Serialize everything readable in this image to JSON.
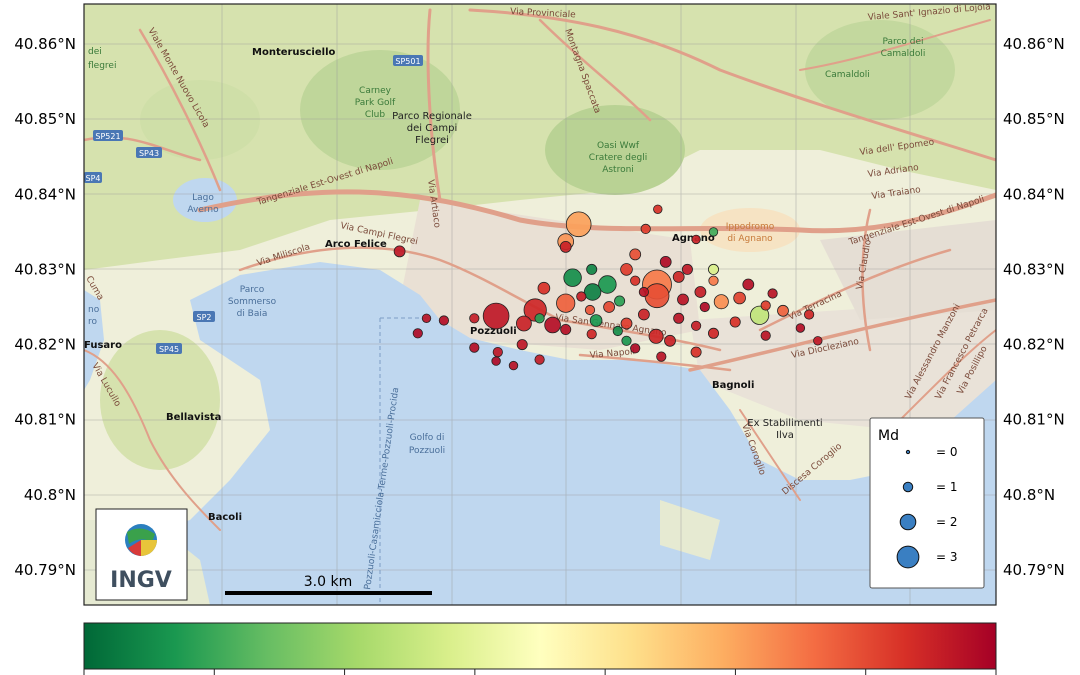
{
  "map": {
    "lat_labels": [
      "40.86°N",
      "40.85°N",
      "40.84°N",
      "40.83°N",
      "40.82°N",
      "40.81°N",
      "40.8°N",
      "40.79°N"
    ],
    "places": {
      "monterusciello": "Monterusciello",
      "arco_felice": "Arco Felice",
      "agnano": "Agnano",
      "bagnoli": "Bagnoli",
      "bellavista": "Bellavista",
      "bacoli": "Bacoli",
      "fusaro": "Fusaro",
      "pozzuoli": "Pozzuoli",
      "camaldoli": "Camaldoli"
    },
    "water_labels": {
      "lago_averno_1": "Lago",
      "lago_averno_2": "Averno",
      "golfo_1": "Golfo di",
      "golfo_2": "Pozzuoli",
      "parco_sommerso_1": "Parco",
      "parco_sommerso_2": "Sommerso",
      "parco_sommerso_3": "di Baia",
      "ferry_route": "Pozzuoli-Casamicciola-Terme-Pozzuoli-Procida"
    },
    "park_labels": {
      "carney_1": "Carney",
      "carney_2": "Park Golf",
      "carney_3": "Club",
      "parco_campi_1": "Parco Regionale",
      "parco_campi_2": "dei Campi",
      "parco_campi_3": "Flegrei",
      "oasi_1": "Oasi Wwf",
      "oasi_2": "Cratere degli",
      "oasi_3": "Astroni",
      "camaldoli_1": "Parco dei",
      "camaldoli_2": "Camaldoli",
      "ippodromo_1": "Ippodromo",
      "ippodromo_2": "di Agnano",
      "ex_ilva_1": "Ex Stabilimenti",
      "ex_ilva_2": "Ilva"
    },
    "road_labels": {
      "via_provinciale": "Via Provinciale",
      "montagna_spaccata": "Montagna Spaccata",
      "tangenziale_w": "Tangenziale Est-Ovest di Napoli",
      "tangenziale_e": "Tangenziale Est-Ovest di Napoli",
      "via_campi_flegrei": "Via Campi Flegrei",
      "via_miliscola": "Via Miliscola",
      "via_san_gennaro": "Via San Gennaro Agnano",
      "via_napoli": "Via Napoli",
      "via_terracina": "Via Terracina",
      "via_diocleziano": "Via Diocleziano",
      "via_claudio": "Via Claudio",
      "via_epomeo": "Via dell' Epomeo",
      "via_adriano": "Via Adriano",
      "via_traiano": "Via Traiano",
      "viale_ignazio": "Viale Sant' Ignazio di Lojola",
      "via_coroglio": "Via Coroglio",
      "discesa_coroglio": "Discesa Coroglio",
      "via_alessandro_manzoni": "Via Alessandro Manzoni",
      "via_francesco_petrarca": "Via Francesco Petrarca",
      "via_posillipo": "Via Posillipo",
      "via_lucullo": "Via Lucullo",
      "viale_monte_nuovo": "Viale Monte Nuovo Licola",
      "via_artiaco": "Via Artiaco"
    },
    "road_shields": {
      "sp501": "SP501",
      "sp521": "SP521",
      "sp43": "SP43",
      "sp4": "SP4",
      "sp2": "SP2",
      "sp45": "SP45"
    },
    "edge_fragments": {
      "dei": "dei",
      "flegrei": "flegrei",
      "ro": "ro",
      "no": "no",
      "cuma": "Cuma"
    }
  },
  "legend": {
    "title": "Md",
    "entries": [
      {
        "magnitude": 0,
        "label": "= 0"
      },
      {
        "magnitude": 1,
        "label": "= 1"
      },
      {
        "magnitude": 2,
        "label": "= 2"
      },
      {
        "magnitude": 3,
        "label": "= 3"
      }
    ],
    "marker_color": "#3a7fc2"
  },
  "scale_bar": {
    "label": "3.0 km"
  },
  "logo": {
    "text": "INGV"
  },
  "colorbar": {
    "colors": [
      "#006837",
      "#1a9850",
      "#66bd63",
      "#a6d96a",
      "#d9ef8b",
      "#ffffbf",
      "#fee08b",
      "#fdae61",
      "#f46d43",
      "#d73027",
      "#a50026"
    ],
    "ticks": 8
  },
  "events": [
    {
      "lat": 40.8238,
      "lon": 14.123,
      "md": 2.6,
      "t": 0.95
    },
    {
      "lat": 40.8246,
      "lon": 14.1275,
      "md": 2.2,
      "t": 0.92
    },
    {
      "lat": 40.8226,
      "lon": 14.1295,
      "md": 1.4,
      "t": 0.97
    },
    {
      "lat": 40.828,
      "lon": 14.1415,
      "md": 3.0,
      "t": 0.78
    },
    {
      "lat": 40.8265,
      "lon": 14.1415,
      "md": 2.4,
      "t": 0.85
    },
    {
      "lat": 40.836,
      "lon": 14.1325,
      "md": 2.5,
      "t": 0.72
    },
    {
      "lat": 40.8337,
      "lon": 14.131,
      "md": 1.4,
      "t": 0.74
    },
    {
      "lat": 40.8289,
      "lon": 14.1318,
      "md": 1.6,
      "t": 0.08
    },
    {
      "lat": 40.828,
      "lon": 14.1358,
      "md": 1.6,
      "t": 0.1
    },
    {
      "lat": 40.827,
      "lon": 14.1341,
      "md": 1.5,
      "t": 0.05
    },
    {
      "lat": 40.8255,
      "lon": 14.131,
      "md": 1.7,
      "t": 0.82
    },
    {
      "lat": 40.8239,
      "lon": 14.1533,
      "md": 1.7,
      "t": 0.35
    },
    {
      "lat": 40.8257,
      "lon": 14.1489,
      "md": 1.2,
      "t": 0.75
    },
    {
      "lat": 40.8211,
      "lon": 14.1414,
      "md": 1.2,
      "t": 0.92
    },
    {
      "lat": 40.8228,
      "lon": 14.1262,
      "md": 1.3,
      "t": 0.93
    },
    {
      "lat": 40.8324,
      "lon": 14.1119,
      "md": 0.8,
      "t": 0.95
    },
    {
      "lat": 40.838,
      "lon": 14.1416,
      "md": 0.5,
      "t": 0.9
    },
    {
      "lat": 40.8354,
      "lon": 14.1402,
      "md": 0.6,
      "t": 0.88
    },
    {
      "lat": 40.835,
      "lon": 14.148,
      "md": 0.5,
      "t": 0.15
    },
    {
      "lat": 40.833,
      "lon": 14.131,
      "md": 0.8,
      "t": 0.93
    },
    {
      "lat": 40.832,
      "lon": 14.139,
      "md": 0.8,
      "t": 0.85
    },
    {
      "lat": 40.831,
      "lon": 14.1425,
      "md": 0.8,
      "t": 0.98
    },
    {
      "lat": 40.83,
      "lon": 14.138,
      "md": 0.9,
      "t": 0.88
    },
    {
      "lat": 40.83,
      "lon": 14.145,
      "md": 0.7,
      "t": 0.95
    },
    {
      "lat": 40.83,
      "lon": 14.148,
      "md": 0.7,
      "t": 0.4
    },
    {
      "lat": 40.829,
      "lon": 14.144,
      "md": 0.8,
      "t": 0.92
    },
    {
      "lat": 40.8285,
      "lon": 14.148,
      "md": 0.6,
      "t": 0.78
    },
    {
      "lat": 40.828,
      "lon": 14.152,
      "md": 0.8,
      "t": 0.97
    },
    {
      "lat": 40.8275,
      "lon": 14.1285,
      "md": 0.9,
      "t": 0.9
    },
    {
      "lat": 40.827,
      "lon": 14.1465,
      "md": 0.8,
      "t": 0.94
    },
    {
      "lat": 40.8262,
      "lon": 14.151,
      "md": 0.9,
      "t": 0.87
    },
    {
      "lat": 40.826,
      "lon": 14.1445,
      "md": 0.8,
      "t": 0.96
    },
    {
      "lat": 40.8258,
      "lon": 14.1372,
      "md": 0.7,
      "t": 0.12
    },
    {
      "lat": 40.825,
      "lon": 14.136,
      "md": 0.8,
      "t": 0.86
    },
    {
      "lat": 40.825,
      "lon": 14.147,
      "md": 0.6,
      "t": 0.98
    },
    {
      "lat": 40.8245,
      "lon": 14.156,
      "md": 0.8,
      "t": 0.82
    },
    {
      "lat": 40.824,
      "lon": 14.14,
      "md": 0.8,
      "t": 0.93
    },
    {
      "lat": 40.8235,
      "lon": 14.144,
      "md": 0.7,
      "t": 0.96
    },
    {
      "lat": 40.8232,
      "lon": 14.1345,
      "md": 0.9,
      "t": 0.1
    },
    {
      "lat": 40.823,
      "lon": 14.1505,
      "md": 0.7,
      "t": 0.9
    },
    {
      "lat": 40.8228,
      "lon": 14.138,
      "md": 0.8,
      "t": 0.88
    },
    {
      "lat": 40.8225,
      "lon": 14.146,
      "md": 0.6,
      "t": 0.94
    },
    {
      "lat": 40.822,
      "lon": 14.131,
      "md": 0.7,
      "t": 0.97
    },
    {
      "lat": 40.8218,
      "lon": 14.137,
      "md": 0.6,
      "t": 0.08
    },
    {
      "lat": 40.8215,
      "lon": 14.148,
      "md": 0.7,
      "t": 0.92
    },
    {
      "lat": 40.8212,
      "lon": 14.154,
      "md": 0.6,
      "t": 0.96
    },
    {
      "lat": 40.8205,
      "lon": 14.143,
      "md": 0.8,
      "t": 0.93
    },
    {
      "lat": 40.82,
      "lon": 14.126,
      "md": 0.7,
      "t": 0.95
    },
    {
      "lat": 40.8195,
      "lon": 14.139,
      "md": 0.6,
      "t": 0.98
    },
    {
      "lat": 40.819,
      "lon": 14.146,
      "md": 0.7,
      "t": 0.9
    },
    {
      "lat": 40.8184,
      "lon": 14.142,
      "md": 0.6,
      "t": 0.96
    },
    {
      "lat": 40.818,
      "lon": 14.128,
      "md": 0.6,
      "t": 0.94
    },
    {
      "lat": 40.8178,
      "lon": 14.123,
      "md": 0.5,
      "t": 0.98
    },
    {
      "lat": 40.8172,
      "lon": 14.125,
      "md": 0.5,
      "t": 0.96
    },
    {
      "lat": 40.8196,
      "lon": 14.1205,
      "md": 0.6,
      "t": 0.97
    },
    {
      "lat": 40.819,
      "lon": 14.1232,
      "md": 0.6,
      "t": 0.95
    },
    {
      "lat": 40.8232,
      "lon": 14.117,
      "md": 0.6,
      "t": 0.97
    },
    {
      "lat": 40.8235,
      "lon": 14.1205,
      "md": 0.6,
      "t": 0.94
    },
    {
      "lat": 40.8215,
      "lon": 14.114,
      "md": 0.6,
      "t": 0.98
    },
    {
      "lat": 40.8235,
      "lon": 14.115,
      "md": 0.5,
      "t": 0.96
    },
    {
      "lat": 40.83,
      "lon": 14.134,
      "md": 0.7,
      "t": 0.06
    },
    {
      "lat": 40.8235,
      "lon": 14.128,
      "md": 0.6,
      "t": 0.12
    },
    {
      "lat": 40.8205,
      "lon": 14.138,
      "md": 0.6,
      "t": 0.1
    },
    {
      "lat": 40.834,
      "lon": 14.146,
      "md": 0.5,
      "t": 0.93
    },
    {
      "lat": 40.8268,
      "lon": 14.1548,
      "md": 0.6,
      "t": 0.96
    },
    {
      "lat": 40.824,
      "lon": 14.159,
      "md": 0.6,
      "t": 0.92
    },
    {
      "lat": 40.8222,
      "lon": 14.158,
      "md": 0.5,
      "t": 0.97
    },
    {
      "lat": 40.8205,
      "lon": 14.16,
      "md": 0.5,
      "t": 0.95
    },
    {
      "lat": 40.8285,
      "lon": 14.139,
      "md": 0.6,
      "t": 0.9
    },
    {
      "lat": 40.8264,
      "lon": 14.1328,
      "md": 0.6,
      "t": 0.94
    },
    {
      "lat": 40.8246,
      "lon": 14.1338,
      "md": 0.6,
      "t": 0.84
    },
    {
      "lat": 40.827,
      "lon": 14.14,
      "md": 0.6,
      "t": 0.96
    },
    {
      "lat": 40.8214,
      "lon": 14.134,
      "md": 0.6,
      "t": 0.92
    },
    {
      "lat": 40.8252,
      "lon": 14.154,
      "md": 0.6,
      "t": 0.88
    }
  ]
}
